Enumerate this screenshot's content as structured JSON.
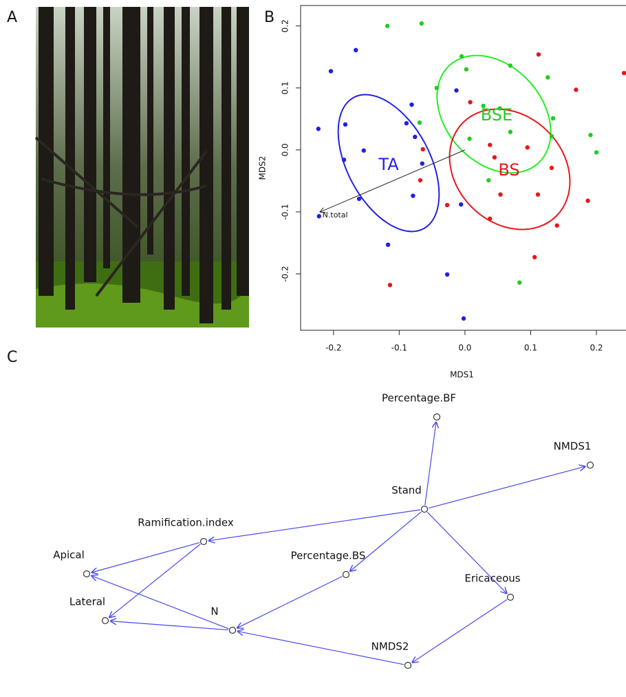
{
  "panel_labels": [
    "A",
    "B",
    "C"
  ],
  "chart_data": {
    "type": "scatter",
    "xlabel": "MDS1",
    "ylabel": "MDS2",
    "xlim": [
      -0.25,
      0.245
    ],
    "ylim": [
      -0.291,
      0.233
    ],
    "xticks": [
      -0.2,
      -0.1,
      {
        "value": 0,
        "label": "0.0"
      },
      0.1,
      0.2
    ],
    "yticks": [
      -0.2,
      -0.1,
      {
        "value": 0,
        "label": "0.0"
      },
      0.1,
      0.2
    ],
    "series": [
      {
        "name": "TA",
        "color": "#1f1fe6",
        "x": [
          -0.166,
          -0.204,
          -0.223,
          -0.182,
          -0.081,
          -0.089,
          -0.076,
          -0.154,
          -0.184,
          -0.065,
          -0.161,
          -0.079,
          -0.222,
          -0.117,
          -0.006,
          -0.013,
          -0.027,
          -0.002
        ],
        "values": [
          0.161,
          0.127,
          0.034,
          0.041,
          0.073,
          0.043,
          0.021,
          -0.001,
          -0.016,
          -0.022,
          -0.079,
          -0.074,
          -0.107,
          -0.153,
          -0.088,
          0.096,
          -0.201,
          -0.272
        ]
      },
      {
        "name": "BSE",
        "color": "#22cc22",
        "x": [
          -0.118,
          -0.066,
          -0.005,
          0.002,
          0.069,
          0.126,
          -0.043,
          0.028,
          0.053,
          -0.069,
          0.069,
          0.134,
          0.132,
          0.007,
          0.191,
          0.2,
          0.036,
          0.083
        ],
        "values": [
          0.2,
          0.204,
          0.151,
          0.13,
          0.136,
          0.117,
          0.1,
          0.071,
          0.067,
          0.044,
          0.029,
          0.051,
          0.022,
          0.018,
          0.024,
          -0.004,
          -0.049,
          -0.214
        ]
      },
      {
        "name": "BS",
        "color": "#e8161a",
        "x": [
          0.112,
          0.242,
          0.169,
          0.008,
          -0.064,
          0.038,
          0.095,
          0.045,
          0.132,
          -0.068,
          -0.027,
          0.054,
          0.111,
          0.038,
          0.14,
          0.187,
          0.106,
          -0.114
        ],
        "values": [
          0.154,
          0.124,
          0.097,
          0.077,
          0.001,
          0.008,
          0.004,
          -0.012,
          -0.029,
          -0.049,
          -0.089,
          -0.072,
          -0.072,
          -0.111,
          -0.122,
          -0.082,
          -0.173,
          -0.218
        ]
      }
    ],
    "vectors": [
      {
        "label": "N.total",
        "x": -0.22,
        "y": -0.1
      }
    ]
  },
  "diagram": {
    "nodes": [
      {
        "label": "Percentage.BF"
      },
      {
        "label": "NMDS1"
      },
      {
        "label": "Stand"
      },
      {
        "label": "Ramification.index"
      },
      {
        "label": "Apical"
      },
      {
        "label": "Percentage.BS"
      },
      {
        "label": "Ericaceous"
      },
      {
        "label": "Lateral"
      },
      {
        "label": "N"
      },
      {
        "label": "NMDS2"
      }
    ]
  }
}
